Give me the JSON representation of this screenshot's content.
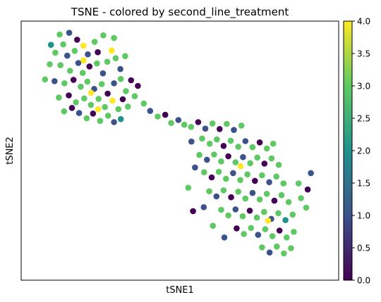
{
  "chart_data": {
    "type": "scatter",
    "title": "TSNE - colored by second_line_treatment",
    "xlabel": "tSNE1",
    "ylabel": "tSNE2",
    "xticks": [],
    "yticks": [],
    "grid": false,
    "legend": "none",
    "colorbar": {
      "colormap": "viridis",
      "range": [
        0.0,
        4.0
      ],
      "ticks": [
        "0.0",
        "0.5",
        "1.0",
        "1.5",
        "2.0",
        "2.5",
        "3.0",
        "3.5",
        "4.0"
      ],
      "placement": "right"
    },
    "point_colors": {
      "0": "#440154",
      "1": "#3b528b",
      "2": "#21918c",
      "3": "#5ec962",
      "4": "#fde725"
    },
    "points": [
      {
        "x": -24.3,
        "y": 26.9,
        "c": 3
      },
      {
        "x": -21.9,
        "y": 27.3,
        "c": 1
      },
      {
        "x": -23.4,
        "y": 24.6,
        "c": 3
      },
      {
        "x": -19.9,
        "y": 25.7,
        "c": 0
      },
      {
        "x": -25.4,
        "y": 22.7,
        "c": 3
      },
      {
        "x": -22.4,
        "y": 22.0,
        "c": 1
      },
      {
        "x": -20.5,
        "y": 23.1,
        "c": 3
      },
      {
        "x": -18.3,
        "y": 24.3,
        "c": 4
      },
      {
        "x": -17.2,
        "y": 22.3,
        "c": 1
      },
      {
        "x": -15.5,
        "y": 25.2,
        "c": 3
      },
      {
        "x": -14.7,
        "y": 22.8,
        "c": 0
      },
      {
        "x": -26.8,
        "y": 20.0,
        "c": 3
      },
      {
        "x": -24.1,
        "y": 19.8,
        "c": 3
      },
      {
        "x": -21.7,
        "y": 18.5,
        "c": 3
      },
      {
        "x": -19.6,
        "y": 20.3,
        "c": 1
      },
      {
        "x": -18.5,
        "y": 18.0,
        "c": 3
      },
      {
        "x": -16.8,
        "y": 19.5,
        "c": 0
      },
      {
        "x": -14.9,
        "y": 20.2,
        "c": 3
      },
      {
        "x": -13.4,
        "y": 17.9,
        "c": 1
      },
      {
        "x": -12.3,
        "y": 20.6,
        "c": 3
      },
      {
        "x": -11.2,
        "y": 23.2,
        "c": 4
      },
      {
        "x": -10.2,
        "y": 21.4,
        "c": 3
      },
      {
        "x": -9.0,
        "y": 18.9,
        "c": 1
      },
      {
        "x": -7.8,
        "y": 21.9,
        "c": 3
      },
      {
        "x": -28.0,
        "y": 16.5,
        "c": 3
      },
      {
        "x": -25.6,
        "y": 16.1,
        "c": 1
      },
      {
        "x": -23.1,
        "y": 15.6,
        "c": 3
      },
      {
        "x": -20.8,
        "y": 16.4,
        "c": 0
      },
      {
        "x": -19.0,
        "y": 14.8,
        "c": 3
      },
      {
        "x": -17.3,
        "y": 16.0,
        "c": 3
      },
      {
        "x": -15.6,
        "y": 14.3,
        "c": 1
      },
      {
        "x": -13.7,
        "y": 15.4,
        "c": 3
      },
      {
        "x": -12.2,
        "y": 13.2,
        "c": 0
      },
      {
        "x": -10.6,
        "y": 15.6,
        "c": 1
      },
      {
        "x": -8.9,
        "y": 16.6,
        "c": 3
      },
      {
        "x": -7.6,
        "y": 13.8,
        "c": 3
      },
      {
        "x": -6.3,
        "y": 16.3,
        "c": 0
      },
      {
        "x": -24.5,
        "y": 12.3,
        "c": 3
      },
      {
        "x": -22.0,
        "y": 12.8,
        "c": 0
      },
      {
        "x": -20.2,
        "y": 11.2,
        "c": 3
      },
      {
        "x": -18.1,
        "y": 12.1,
        "c": 3
      },
      {
        "x": -16.4,
        "y": 10.6,
        "c": 3
      },
      {
        "x": -14.5,
        "y": 12.0,
        "c": 3
      },
      {
        "x": -12.9,
        "y": 10.1,
        "c": 3
      },
      {
        "x": -11.0,
        "y": 11.6,
        "c": 4
      },
      {
        "x": -9.5,
        "y": 9.6,
        "c": 3
      },
      {
        "x": -8.4,
        "y": 11.9,
        "c": 0
      },
      {
        "x": -7.1,
        "y": 10.2,
        "c": 3
      },
      {
        "x": -5.4,
        "y": 12.6,
        "c": 3
      },
      {
        "x": -4.6,
        "y": 15.0,
        "c": 0
      },
      {
        "x": -19.4,
        "y": 8.7,
        "c": 1
      },
      {
        "x": -17.5,
        "y": 7.5,
        "c": 3
      },
      {
        "x": -15.9,
        "y": 8.6,
        "c": 0
      },
      {
        "x": -14.1,
        "y": 6.9,
        "c": 3
      },
      {
        "x": -12.1,
        "y": 8.1,
        "c": 3
      },
      {
        "x": -10.6,
        "y": 6.6,
        "c": 1
      },
      {
        "x": -8.9,
        "y": 7.3,
        "c": 2
      },
      {
        "x": -14.6,
        "y": 9.6,
        "c": 4
      },
      {
        "x": -21.2,
        "y": 9.9,
        "c": 0
      },
      {
        "x": -23.2,
        "y": 9.1,
        "c": 3
      },
      {
        "x": -16.4,
        "y": 13.4,
        "c": 4
      },
      {
        "x": -18.3,
        "y": 20.9,
        "c": 4
      },
      {
        "x": -10.6,
        "y": 26.1,
        "c": 3
      },
      {
        "x": -26.5,
        "y": 24.5,
        "c": 2
      },
      {
        "x": -13.3,
        "y": 26.7,
        "c": 3
      },
      {
        "x": -3.1,
        "y": 10.9,
        "c": 3
      },
      {
        "x": -1.5,
        "y": 9.2,
        "c": 1
      },
      {
        "x": 0.4,
        "y": 7.9,
        "c": 3
      },
      {
        "x": 2.3,
        "y": 8.3,
        "c": 0
      },
      {
        "x": 3.8,
        "y": 6.4,
        "c": 3
      },
      {
        "x": 5.6,
        "y": 7.1,
        "c": 1
      },
      {
        "x": 7.1,
        "y": 6.0,
        "c": 3
      },
      {
        "x": 8.8,
        "y": 5.5,
        "c": 3
      },
      {
        "x": 10.6,
        "y": 6.6,
        "c": 0
      },
      {
        "x": 12.4,
        "y": 5.1,
        "c": 1
      },
      {
        "x": 14.2,
        "y": 6.3,
        "c": 3
      },
      {
        "x": 16.0,
        "y": 5.0,
        "c": 0
      },
      {
        "x": 17.8,
        "y": 6.2,
        "c": 3
      },
      {
        "x": 19.6,
        "y": 4.8,
        "c": 1
      },
      {
        "x": 21.5,
        "y": 5.8,
        "c": 3
      },
      {
        "x": 11.6,
        "y": 2.8,
        "c": 3
      },
      {
        "x": 13.5,
        "y": 1.6,
        "c": 3
      },
      {
        "x": 15.3,
        "y": 2.6,
        "c": 3
      },
      {
        "x": 17.0,
        "y": 1.1,
        "c": 0
      },
      {
        "x": 18.8,
        "y": 2.3,
        "c": 3
      },
      {
        "x": 20.7,
        "y": 0.9,
        "c": 3
      },
      {
        "x": 22.5,
        "y": 2.2,
        "c": 1
      },
      {
        "x": 24.3,
        "y": 0.8,
        "c": 3
      },
      {
        "x": 26.1,
        "y": 1.9,
        "c": 0
      },
      {
        "x": 27.9,
        "y": 0.5,
        "c": 3
      },
      {
        "x": 29.5,
        "y": 1.6,
        "c": 3
      },
      {
        "x": 10.9,
        "y": -1.0,
        "c": 3
      },
      {
        "x": 12.8,
        "y": -2.1,
        "c": 1
      },
      {
        "x": 14.6,
        "y": -0.9,
        "c": 3
      },
      {
        "x": 16.4,
        "y": -2.5,
        "c": 3
      },
      {
        "x": 18.2,
        "y": -1.3,
        "c": 0
      },
      {
        "x": 20.0,
        "y": -2.7,
        "c": 3
      },
      {
        "x": 21.9,
        "y": -1.5,
        "c": 1
      },
      {
        "x": 23.7,
        "y": -2.9,
        "c": 3
      },
      {
        "x": 25.5,
        "y": -1.6,
        "c": 3
      },
      {
        "x": 27.3,
        "y": -3.0,
        "c": 0
      },
      {
        "x": 29.1,
        "y": -1.8,
        "c": 3
      },
      {
        "x": 30.9,
        "y": -3.3,
        "c": 3
      },
      {
        "x": 12.1,
        "y": -5.0,
        "c": 3
      },
      {
        "x": 14.0,
        "y": -6.2,
        "c": 0
      },
      {
        "x": 15.8,
        "y": -4.9,
        "c": 3
      },
      {
        "x": 17.6,
        "y": -6.5,
        "c": 3
      },
      {
        "x": 19.4,
        "y": -5.2,
        "c": 1
      },
      {
        "x": 21.2,
        "y": -6.8,
        "c": 3
      },
      {
        "x": 23.0,
        "y": -5.5,
        "c": 3
      },
      {
        "x": 24.9,
        "y": -7.0,
        "c": 0
      },
      {
        "x": 26.7,
        "y": -5.7,
        "c": 3
      },
      {
        "x": 28.5,
        "y": -7.3,
        "c": 1
      },
      {
        "x": 30.3,
        "y": -6.0,
        "c": 3
      },
      {
        "x": 32.1,
        "y": -7.6,
        "c": 3
      },
      {
        "x": 13.4,
        "y": -9.4,
        "c": 3
      },
      {
        "x": 15.2,
        "y": -10.6,
        "c": 1
      },
      {
        "x": 17.0,
        "y": -9.2,
        "c": 3
      },
      {
        "x": 18.9,
        "y": -10.8,
        "c": 0
      },
      {
        "x": 20.7,
        "y": -9.5,
        "c": 3
      },
      {
        "x": 22.5,
        "y": -11.1,
        "c": 3
      },
      {
        "x": 24.3,
        "y": -9.8,
        "c": 1
      },
      {
        "x": 26.1,
        "y": -11.3,
        "c": 3
      },
      {
        "x": 27.9,
        "y": -10.0,
        "c": 3
      },
      {
        "x": 29.8,
        "y": -11.6,
        "c": 0
      },
      {
        "x": 31.6,
        "y": -10.3,
        "c": 3
      },
      {
        "x": 33.4,
        "y": -11.9,
        "c": 3
      },
      {
        "x": 16.4,
        "y": -13.7,
        "c": 3
      },
      {
        "x": 18.2,
        "y": -15.0,
        "c": 3
      },
      {
        "x": 20.0,
        "y": -13.6,
        "c": 1
      },
      {
        "x": 21.8,
        "y": -15.2,
        "c": 3
      },
      {
        "x": 23.6,
        "y": -13.9,
        "c": 0
      },
      {
        "x": 25.4,
        "y": -15.5,
        "c": 3
      },
      {
        "x": 27.2,
        "y": -14.2,
        "c": 3
      },
      {
        "x": 29.0,
        "y": -15.8,
        "c": 1
      },
      {
        "x": 30.8,
        "y": -14.5,
        "c": 3
      },
      {
        "x": 32.6,
        "y": -16.1,
        "c": 2
      },
      {
        "x": 34.4,
        "y": -14.8,
        "c": 3
      },
      {
        "x": 20.3,
        "y": -18.0,
        "c": 0
      },
      {
        "x": 22.1,
        "y": -19.3,
        "c": 3
      },
      {
        "x": 23.9,
        "y": -17.9,
        "c": 3
      },
      {
        "x": 25.7,
        "y": -19.5,
        "c": 1
      },
      {
        "x": 27.5,
        "y": -18.2,
        "c": 3
      },
      {
        "x": 29.3,
        "y": -19.8,
        "c": 3
      },
      {
        "x": 31.1,
        "y": -18.5,
        "c": 0
      },
      {
        "x": 32.9,
        "y": -20.1,
        "c": 3
      },
      {
        "x": 34.7,
        "y": -18.8,
        "c": 3
      },
      {
        "x": 26.7,
        "y": -22.4,
        "c": 3
      },
      {
        "x": 28.6,
        "y": -23.6,
        "c": 1
      },
      {
        "x": 30.4,
        "y": -22.2,
        "c": 3
      },
      {
        "x": 32.2,
        "y": -23.8,
        "c": 3
      },
      {
        "x": 34.0,
        "y": -22.6,
        "c": 3
      },
      {
        "x": 28.2,
        "y": -16.2,
        "c": 4
      },
      {
        "x": 21.3,
        "y": -3.6,
        "c": 4
      },
      {
        "x": 36.5,
        "y": -11.0,
        "c": 3
      },
      {
        "x": 38.2,
        "y": -9.0,
        "c": 0
      },
      {
        "x": 39.0,
        "y": -5.2,
        "c": 1
      },
      {
        "x": 37.8,
        "y": -13.2,
        "c": 3
      },
      {
        "x": 35.9,
        "y": -7.6,
        "c": 3
      },
      {
        "x": 9.3,
        "y": -14.0,
        "c": 0
      },
      {
        "x": 12.0,
        "y": -13.1,
        "c": 1
      },
      {
        "x": 14.3,
        "y": -17.4,
        "c": 3
      },
      {
        "x": 17.2,
        "y": -20.1,
        "c": 1
      },
      {
        "x": 8.1,
        "y": -8.6,
        "c": 3
      },
      {
        "x": 9.8,
        "y": -3.9,
        "c": 1
      },
      {
        "x": 8.9,
        "y": 2.1,
        "c": 1
      }
    ]
  }
}
